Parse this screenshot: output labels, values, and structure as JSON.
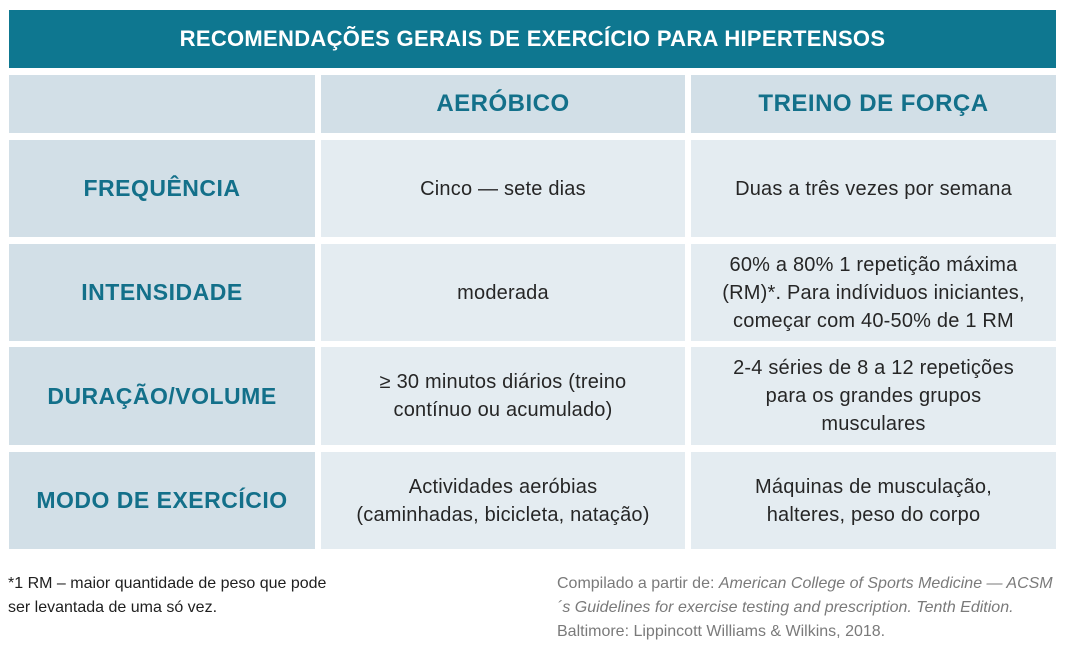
{
  "title": "RECOMENDAÇÕES GERAIS DE EXERCÍCIO PARA HIPERTENSOS",
  "columns": [
    "",
    "AERÓBICO",
    "TREINO DE FORÇA"
  ],
  "rows": [
    {
      "label": "FREQUÊNCIA",
      "aerobico": "Cinco — sete dias",
      "forca": "Duas a três vezes por semana"
    },
    {
      "label": "INTENSIDADE",
      "aerobico": "moderada",
      "forca": "60% a 80% 1 repetição máxima\n(RM)*. Para indíviduos iniciantes,\ncomeçar com 40-50% de 1 RM"
    },
    {
      "label": "DURAÇÃO/VOLUME",
      "aerobico": "≥ 30 minutos diários (treino\ncontínuo ou acumulado)",
      "forca": "2-4 séries de 8 a 12 repetições\npara os grandes grupos\nmusculares"
    },
    {
      "label": "MODO DE EXERCÍCIO",
      "aerobico": "Actividades aeróbias\n(caminhadas, bicicleta, natação)",
      "forca": "Máquinas de musculação,\nhalteres, peso do corpo"
    }
  ],
  "footnote": "*1 RM – maior quantidade de peso que pode ser levantada de uma só vez.",
  "source": {
    "prefix": "Compilado a partir de: ",
    "italic": "American College of Sports Medicine — ACSM´s Guidelines for exercise testing and prescription. Tenth Edition.",
    "suffix": " Baltimore: Lippincott Williams & Wilkins, 2018."
  },
  "colors": {
    "title_bg": "#0e7790",
    "header_bg": "#d2dfe7",
    "header_text": "#13708a",
    "cell_bg": "#e4ecf1",
    "cell_text": "#262626",
    "source_text": "#7a7a7a"
  }
}
